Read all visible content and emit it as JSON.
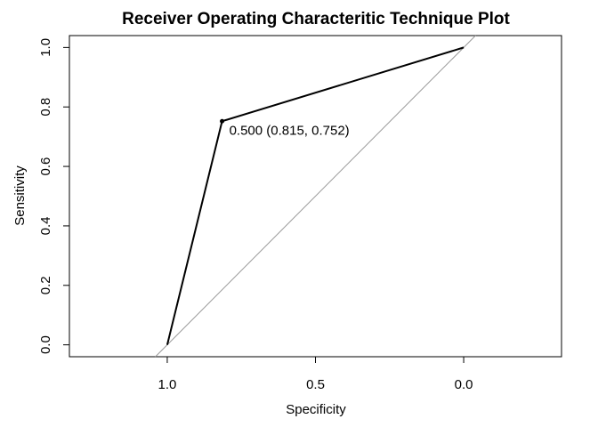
{
  "chart_data": {
    "type": "line",
    "title": "Receiver Operating Characteritic Technique Plot",
    "xlabel": "Specificity",
    "ylabel": "Sensitivity",
    "x_reversed": true,
    "xlim": [
      1.33,
      -0.33
    ],
    "ylim": [
      -0.04,
      1.04
    ],
    "x_ticks": [
      1.0,
      0.5,
      0.0
    ],
    "x_tick_labels": [
      "1.0",
      "0.5",
      "0.0"
    ],
    "y_ticks": [
      0.0,
      0.2,
      0.4,
      0.6,
      0.8,
      1.0
    ],
    "y_tick_labels": [
      "0.0",
      "0.2",
      "0.4",
      "0.6",
      "0.8",
      "1.0"
    ],
    "grid": false,
    "series": [
      {
        "specificity": [
          1.0,
          0.815,
          0.0
        ],
        "sensitivity": [
          0.0,
          0.752,
          1.0
        ],
        "color": "#000000"
      }
    ],
    "reference_line": {
      "color": "#999999",
      "specificity": [
        1.04,
        -0.04
      ],
      "sensitivity": [
        -0.04,
        1.04
      ]
    },
    "threshold_point": {
      "specificity": 0.815,
      "sensitivity": 0.752,
      "label": "0.500 (0.815, 0.752)"
    }
  }
}
